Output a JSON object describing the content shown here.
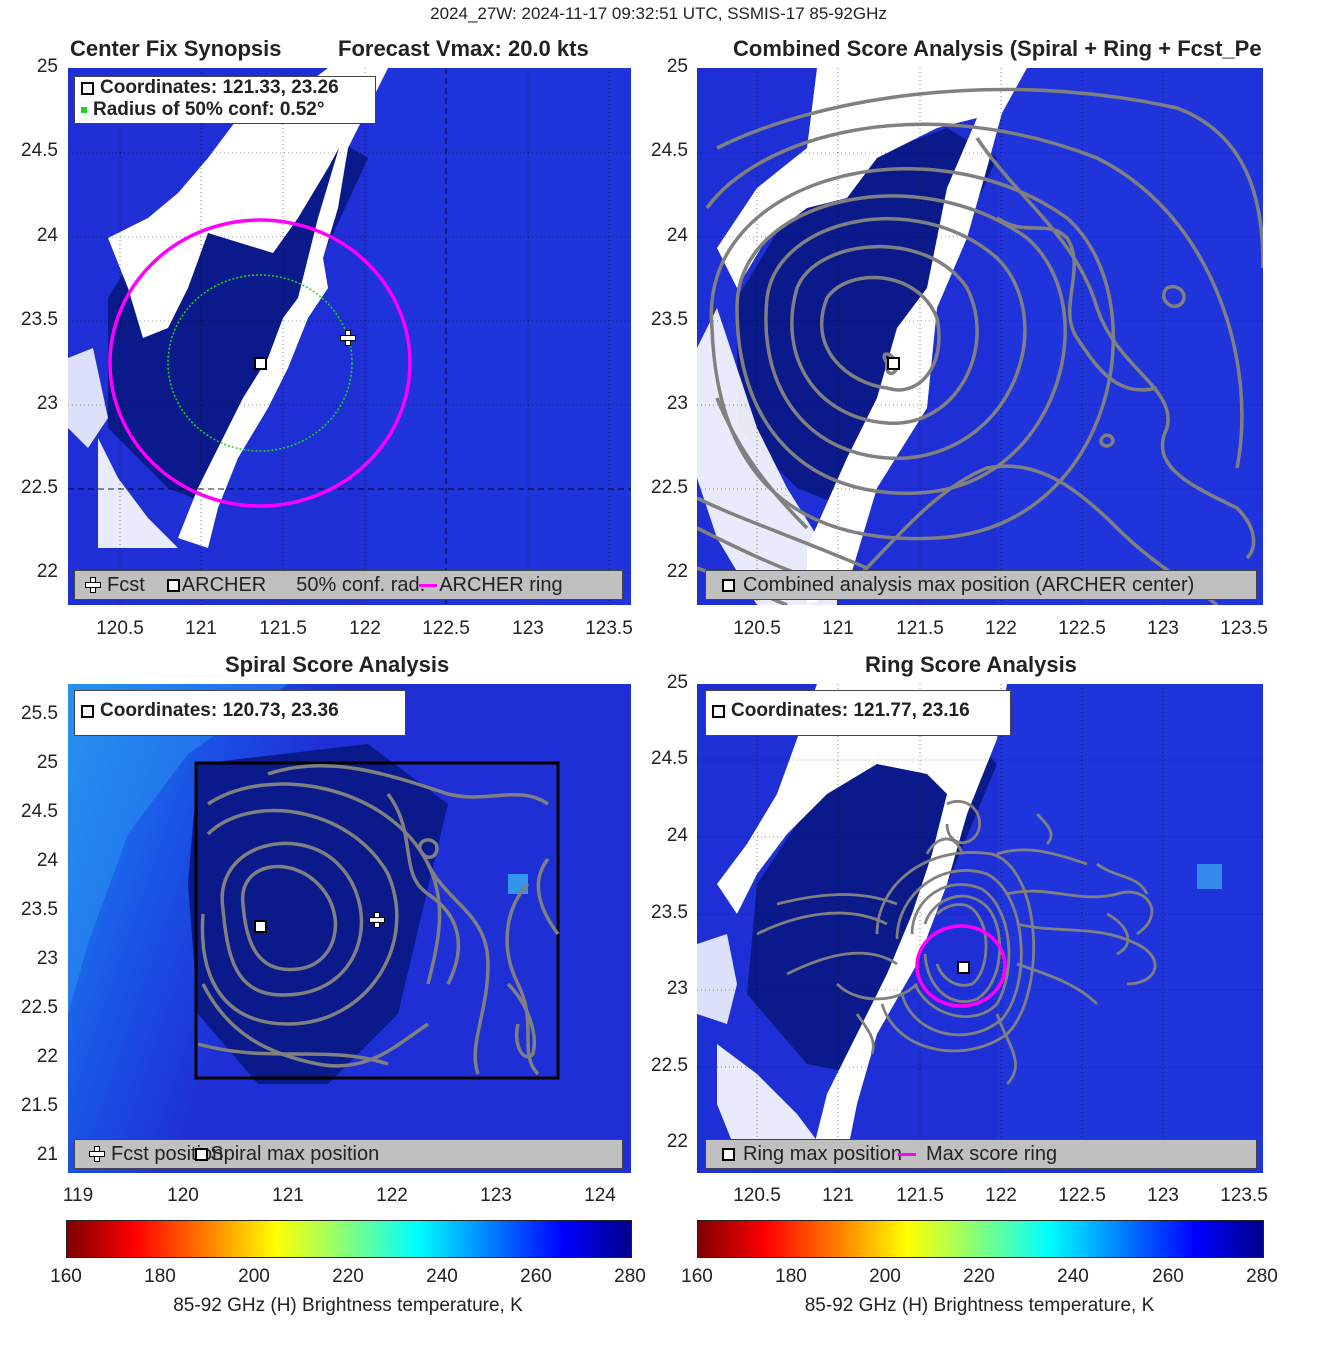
{
  "suptitle": "2024_27W: 2024-11-17 09:32:51 UTC, SSMIS-17 85-92GHz",
  "colors": {
    "magenta_ring": "#ff00ff",
    "conf_circle": "#1cd81c",
    "contour": "#808080",
    "background_tb": "#1e2fd6",
    "cold_white": "#ffffff"
  },
  "panels": {
    "synopsis": {
      "title_left": "Center Fix Synopsis",
      "title_right": "Forecast Vmax: 20.0 kts",
      "legend_top": [
        "Coordinates: 121.33, 23.26",
        "Radius of 50% conf: 0.52°"
      ],
      "legend_bottom": [
        "Fcst",
        "ARCHER",
        "50% conf. rad.",
        "ARCHER ring"
      ],
      "x_ticks": [
        "120.5",
        "121",
        "121.5",
        "122",
        "122.5",
        "123",
        "123.5"
      ],
      "y_ticks": [
        "25",
        "24.5",
        "24",
        "23.5",
        "23",
        "22.5",
        "22"
      ]
    },
    "combined": {
      "title": "Combined Score Analysis (Spiral + Ring + Fcst_Pe",
      "legend_bottom": "Combined analysis max position (ARCHER center)",
      "x_ticks": [
        "120.5",
        "121",
        "121.5",
        "122",
        "122.5",
        "123",
        "123.5"
      ],
      "y_ticks": [
        "25",
        "24.5",
        "24",
        "23.5",
        "23",
        "22.5",
        "22"
      ]
    },
    "spiral": {
      "title": "Spiral Score Analysis",
      "legend_top": "Coordinates: 120.73, 23.36",
      "legend_bottom": [
        "Fcst position",
        "Spiral max position"
      ],
      "x_ticks": [
        "119",
        "120",
        "121",
        "122",
        "123",
        "124"
      ],
      "y_ticks": [
        "25.5",
        "25",
        "24.5",
        "24",
        "23.5",
        "23",
        "22.5",
        "22",
        "21.5",
        "21"
      ]
    },
    "ring": {
      "title": "Ring Score Analysis",
      "legend_top": "Coordinates: 121.77, 23.16",
      "legend_bottom": [
        "Ring max position",
        "Max score ring"
      ],
      "x_ticks": [
        "120.5",
        "121",
        "121.5",
        "122",
        "122.5",
        "123",
        "123.5"
      ],
      "y_ticks": [
        "25",
        "24.5",
        "24",
        "23.5",
        "23",
        "22.5",
        "22"
      ]
    }
  },
  "colorbars": [
    {
      "ticks": [
        "160",
        "180",
        "200",
        "220",
        "240",
        "260",
        "280"
      ],
      "label": "85-92 GHz (H) Brightness temperature, K"
    },
    {
      "ticks": [
        "160",
        "180",
        "200",
        "220",
        "240",
        "260",
        "280"
      ],
      "label": "85-92 GHz (H) Brightness temperature, K"
    }
  ],
  "chart_data": [
    {
      "type": "heatmap",
      "title": "Center Fix Synopsis",
      "subtitle": "Forecast Vmax: 20.0 kts",
      "xlim": [
        120.2,
        123.6
      ],
      "ylim": [
        21.8,
        25
      ],
      "archer_center": {
        "x": 121.33,
        "y": 23.26
      },
      "forecast_position": {
        "x": 121.87,
        "y": 23.4
      },
      "conf_radius_50pct_deg": 0.52,
      "grid": true
    },
    {
      "type": "heatmap",
      "title": "Combined Score Analysis (Spiral + Ring + Fcst_Pe",
      "xlim": [
        120.2,
        123.6
      ],
      "ylim": [
        21.8,
        25
      ],
      "max_position": {
        "x": 121.33,
        "y": 23.26
      },
      "grid": true
    },
    {
      "type": "heatmap",
      "title": "Spiral Score Analysis",
      "xlim": [
        119,
        124.3
      ],
      "ylim": [
        20.85,
        25.85
      ],
      "spiral_max_position": {
        "x": 120.73,
        "y": 23.36
      },
      "forecast_position": {
        "x": 121.87,
        "y": 23.4
      },
      "search_box": {
        "x": [
          120.2,
          123.6
        ],
        "y": [
          21.8,
          25
        ]
      },
      "grid": false
    },
    {
      "type": "heatmap",
      "title": "Ring Score Analysis",
      "xlim": [
        120.2,
        123.6
      ],
      "ylim": [
        21.8,
        25
      ],
      "ring_max_position": {
        "x": 121.77,
        "y": 23.16
      },
      "max_score_ring_radius_deg": 0.27,
      "grid": true
    }
  ]
}
